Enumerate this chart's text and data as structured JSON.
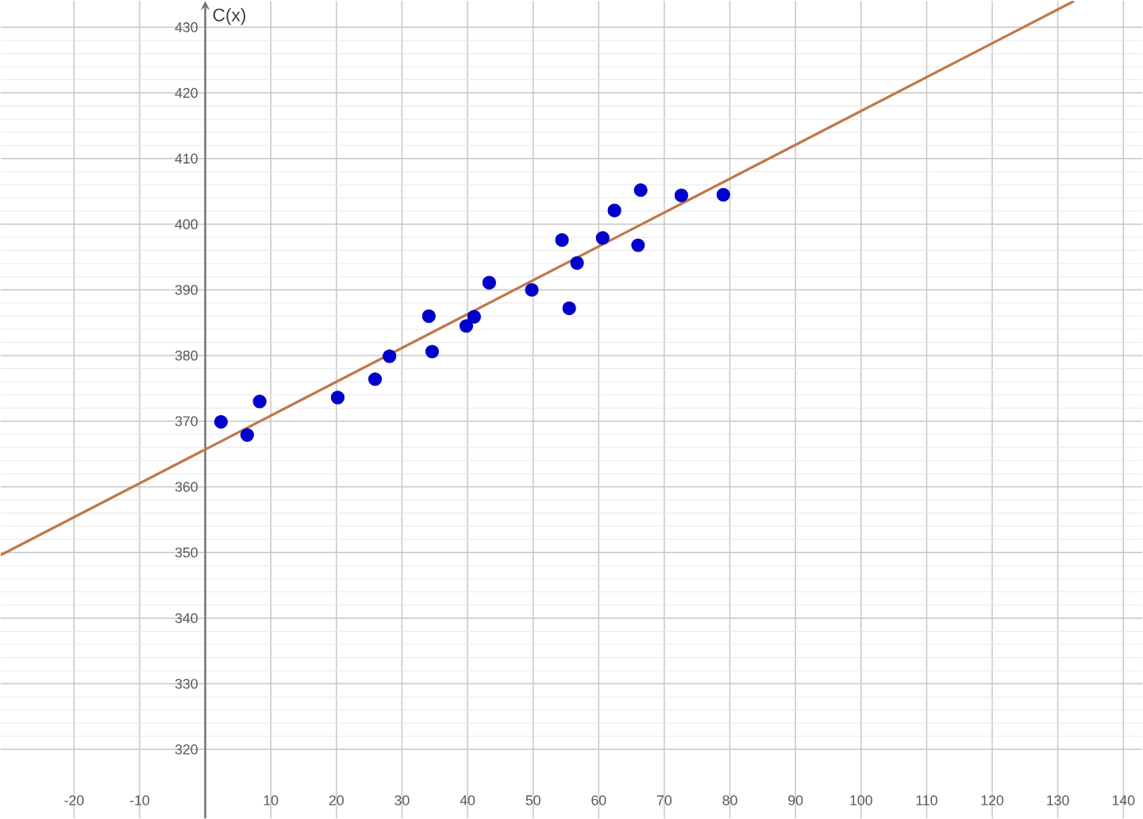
{
  "chart_data": {
    "type": "scatter",
    "ylabel": "C(x)",
    "xlim": [
      -31.2,
      142.9
    ],
    "ylim": [
      309.5,
      434
    ],
    "xticks": [
      -20,
      -10,
      10,
      20,
      30,
      40,
      50,
      60,
      70,
      80,
      90,
      100,
      110,
      120,
      130,
      140
    ],
    "yticks": [
      320,
      330,
      340,
      350,
      360,
      370,
      380,
      390,
      400,
      410,
      420,
      430
    ],
    "grid": true,
    "series": [
      {
        "marker": "circle",
        "color": "#0000cc",
        "x": [
          2.4,
          6.4,
          8.3,
          20.2,
          25.9,
          28.1,
          34.1,
          34.6,
          39.8,
          41.0,
          43.3,
          49.8,
          54.4,
          55.5,
          56.7,
          60.6,
          62.4,
          66.0,
          66.4,
          72.6,
          79.0
        ],
        "values": [
          369.9,
          367.9,
          373.0,
          373.6,
          376.4,
          379.9,
          386.0,
          380.6,
          384.5,
          385.9,
          391.1,
          390.0,
          397.6,
          387.2,
          394.1,
          397.9,
          402.1,
          396.8,
          405.2,
          404.4,
          404.5
        ]
      },
      {
        "type": "line",
        "marker": "none",
        "color": "#c0784a",
        "x": [
          -31.2,
          132.5
        ],
        "values": [
          349.6,
          434
        ]
      }
    ]
  }
}
